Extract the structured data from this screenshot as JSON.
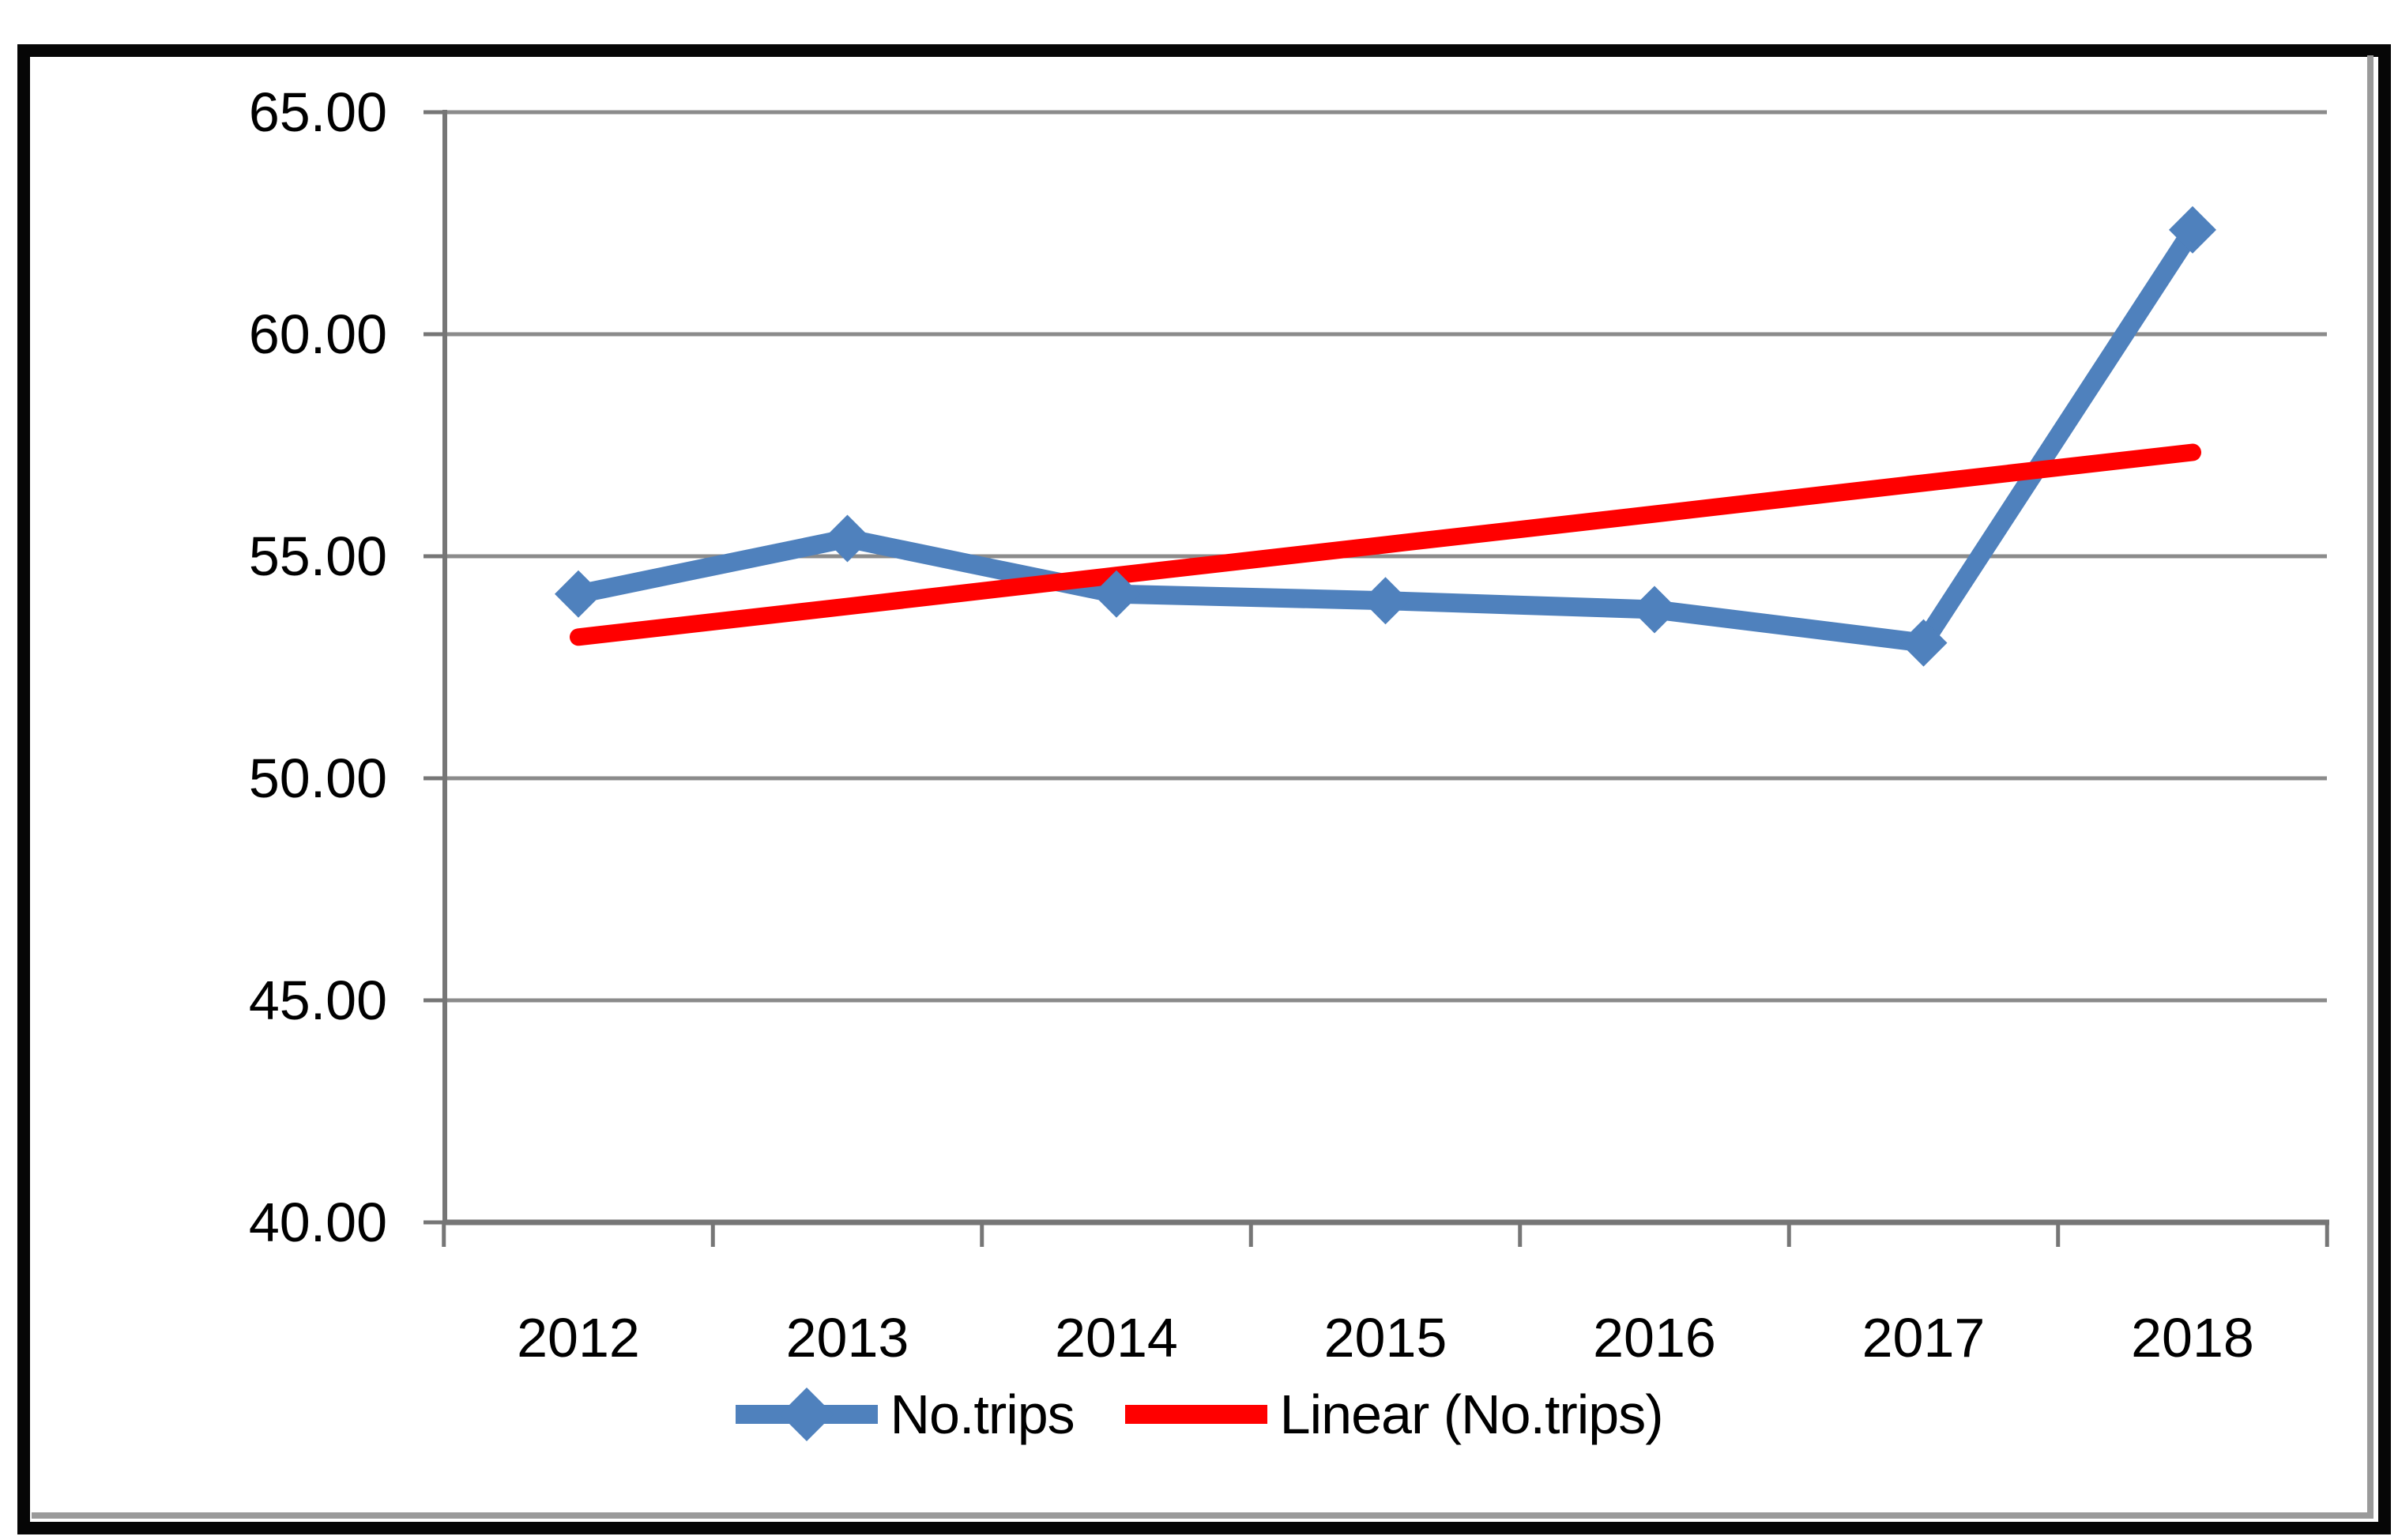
{
  "chart_data": {
    "type": "line",
    "title": "",
    "xlabel": "",
    "ylabel": "",
    "categories": [
      "2012",
      "2013",
      "2014",
      "2015",
      "2016",
      "2017",
      "2018"
    ],
    "series": [
      {
        "name": "No.trips",
        "color": "#4F81BD",
        "marker": "diamond",
        "values": [
          54.15,
          55.4,
          54.15,
          54.0,
          53.8,
          53.05,
          62.35
        ]
      },
      {
        "name": "Linear (No.trips)",
        "color": "#FF0000",
        "style": "trendline",
        "values": [
          53.18,
          53.87,
          54.57,
          55.26,
          55.95,
          56.65,
          57.34
        ]
      }
    ],
    "ylim": [
      40,
      65
    ],
    "yticks": [
      {
        "value": 65,
        "label": "65.00"
      },
      {
        "value": 60,
        "label": "60.00"
      },
      {
        "value": 55,
        "label": "55.00"
      },
      {
        "value": 50,
        "label": "50.00"
      },
      {
        "value": 45,
        "label": "45.00"
      },
      {
        "value": 40,
        "label": "40.00"
      }
    ],
    "grid": true,
    "legend_position": "bottom-center"
  },
  "legend": {
    "items": [
      {
        "label": "No.trips",
        "marker": "line-with-diamond",
        "color": "#4F81BD"
      },
      {
        "label": "Linear (No.trips)",
        "marker": "line",
        "color": "#FF0000"
      }
    ]
  },
  "colors": {
    "series_blue": "#4F81BD",
    "trendline_red": "#FF0000",
    "gridline_gray": "#8B8B8B",
    "axis_gray": "#767676",
    "border_black": "#060606",
    "chart_border_gray": "#9A9A9A",
    "text": "#000000"
  }
}
